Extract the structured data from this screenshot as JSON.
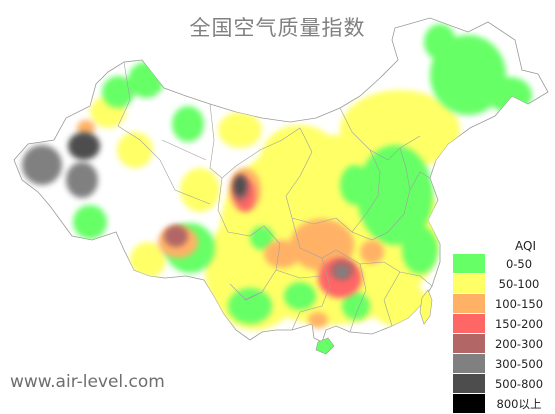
{
  "title": "全国空气质量指数",
  "source": "www.air-level.com",
  "legend": {
    "title": "AQI",
    "items": [
      {
        "label": "0-50",
        "color": "#66ff66"
      },
      {
        "label": "50-100",
        "color": "#ffff66"
      },
      {
        "label": "100-150",
        "color": "#ffb266"
      },
      {
        "label": "150-200",
        "color": "#ff6666"
      },
      {
        "label": "200-300",
        "color": "#b26666"
      },
      {
        "label": "300-500",
        "color": "#808080"
      },
      {
        "label": "500-800",
        "color": "#4d4d4d"
      },
      {
        "label": "800以上",
        "color": "#000000"
      }
    ]
  }
}
